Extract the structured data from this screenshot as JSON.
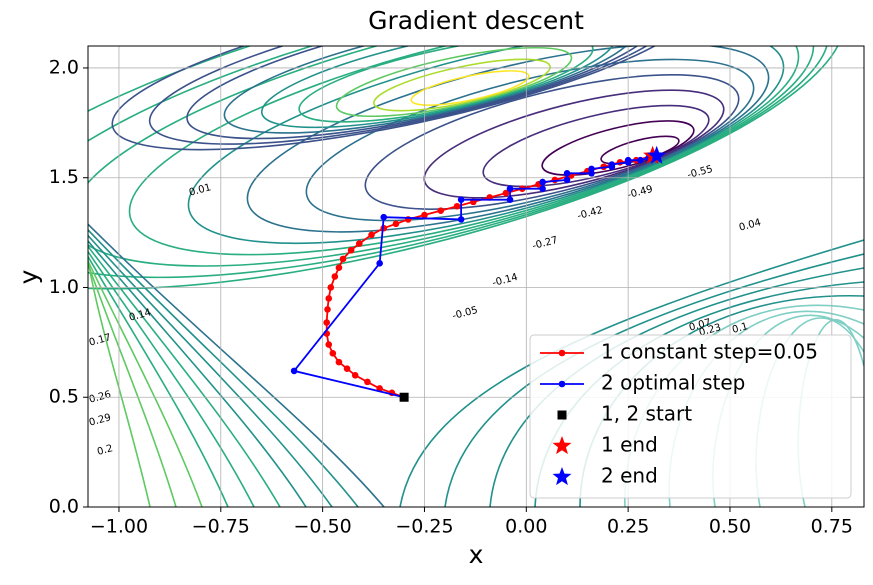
{
  "chart_data": {
    "type": "line",
    "title": "Gradient descent",
    "x_label": "x",
    "y_label": "y",
    "xlim": [
      -1.076,
      0.829
    ],
    "ylim": [
      0,
      2.1
    ],
    "xticks": [
      {
        "value": -1,
        "label": "−1.00"
      },
      {
        "value": -0.75,
        "label": "−0.75"
      },
      {
        "value": -0.5,
        "label": "−0.50"
      },
      {
        "value": -0.25,
        "label": "−0.25"
      },
      {
        "value": 0,
        "label": "0.00"
      },
      0.25,
      {
        "value": 0.5,
        "label": "0.50"
      },
      0.75
    ],
    "yticks": [
      {
        "value": 0,
        "label": "0.0"
      },
      0.5,
      {
        "value": 1,
        "label": "1.0"
      },
      1.5,
      {
        "value": 2,
        "label": "2.0"
      }
    ],
    "grid": true,
    "legend": "lower right",
    "contour_labels": [
      -0.55,
      -0.49,
      -0.42,
      -0.27,
      -0.14,
      -0.05,
      0.01,
      0.04,
      0.07,
      0.1,
      0.14,
      0.17,
      0.2,
      0.23,
      0.26,
      0.29
    ],
    "series": [
      {
        "name": "1 constant step=0.05",
        "color": "#ff0000",
        "marker": "circle",
        "x": [
          -0.3,
          -0.33,
          -0.36,
          -0.39,
          -0.42,
          -0.44,
          -0.46,
          -0.475,
          -0.485,
          -0.49,
          -0.49,
          -0.488,
          -0.485,
          -0.48,
          -0.47,
          -0.46,
          -0.45,
          -0.43,
          -0.41,
          -0.38,
          -0.35,
          -0.32,
          -0.29,
          -0.25,
          -0.21,
          -0.17,
          -0.13,
          -0.09,
          -0.05,
          -0.01,
          0.03,
          0.07,
          0.11,
          0.15,
          0.19,
          0.23,
          0.27,
          0.31
        ],
        "y": [
          0.5,
          0.52,
          0.54,
          0.57,
          0.6,
          0.63,
          0.66,
          0.7,
          0.74,
          0.79,
          0.84,
          0.9,
          0.95,
          1.0,
          1.05,
          1.09,
          1.13,
          1.17,
          1.2,
          1.24,
          1.27,
          1.29,
          1.31,
          1.33,
          1.35,
          1.37,
          1.39,
          1.41,
          1.43,
          1.45,
          1.47,
          1.49,
          1.51,
          1.53,
          1.55,
          1.57,
          1.58,
          1.6
        ]
      },
      {
        "name": "2 optimal step",
        "color": "#0000ff",
        "marker": "circle",
        "x": [
          -0.3,
          -0.57,
          -0.36,
          -0.35,
          -0.16,
          -0.16,
          -0.04,
          -0.04,
          0.04,
          0.04,
          0.1,
          0.1,
          0.16,
          0.16,
          0.21,
          0.21,
          0.25,
          0.25,
          0.28,
          0.3,
          0.32
        ],
        "y": [
          0.5,
          0.62,
          1.11,
          1.32,
          1.31,
          1.4,
          1.4,
          1.45,
          1.45,
          1.48,
          1.49,
          1.52,
          1.52,
          1.54,
          1.55,
          1.56,
          1.57,
          1.58,
          1.58,
          1.59,
          1.6
        ]
      },
      {
        "name": "1, 2 start",
        "color": "#000000",
        "marker": "square",
        "x": [
          -0.3
        ],
        "y": [
          0.5
        ]
      },
      {
        "name": "1 end",
        "color": "#ff0000",
        "marker": "star",
        "x": [
          0.31
        ],
        "y": [
          1.6
        ]
      },
      {
        "name": "2 end",
        "color": "#0000ff",
        "marker": "star",
        "x": [
          0.32
        ],
        "y": [
          1.6
        ]
      }
    ]
  }
}
